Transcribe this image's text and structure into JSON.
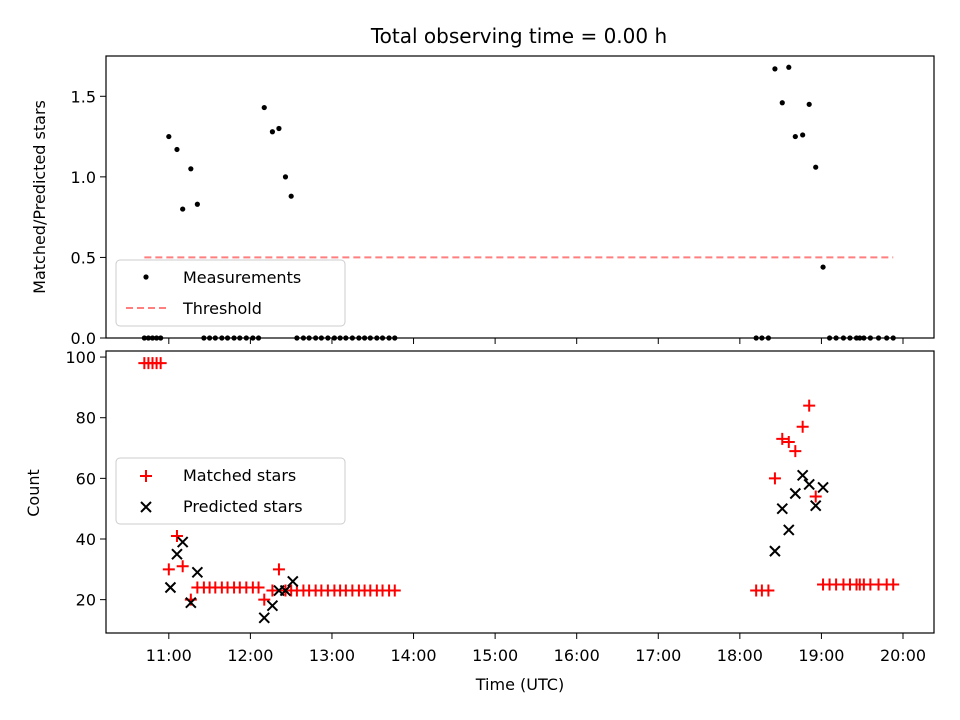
{
  "chart_data": [
    {
      "type": "scatter",
      "title": "Total observing time = 0.00 h",
      "ylabel": "Matched/Predicted stars",
      "ylim": [
        0,
        1.75
      ],
      "yticks": [
        "0.0",
        "0.5",
        "1.0",
        "1.5"
      ],
      "ytick_values": [
        0,
        0.5,
        1.0,
        1.5
      ],
      "xlim": [
        10.23,
        20.38
      ],
      "legend_position": "lower-left",
      "colors": {
        "measurements": "#000000",
        "threshold": "#ff7f7f"
      },
      "series": [
        {
          "name": "Measurements",
          "marker": "dot",
          "x": [
            10.7,
            10.75,
            10.8,
            10.85,
            10.9,
            11.0,
            11.1,
            11.17,
            11.27,
            11.35,
            11.43,
            11.5,
            11.57,
            11.65,
            11.72,
            11.8,
            11.87,
            11.95,
            12.03,
            12.1,
            12.17,
            12.27,
            12.35,
            12.43,
            12.5,
            12.57,
            12.65,
            12.72,
            12.8,
            12.87,
            12.95,
            13.03,
            13.1,
            13.17,
            13.25,
            13.33,
            13.4,
            13.47,
            13.55,
            13.62,
            13.7,
            13.77,
            18.2,
            18.27,
            18.35,
            18.43,
            18.52,
            18.6,
            18.68,
            18.77,
            18.85,
            18.93,
            19.02,
            19.1,
            19.18,
            19.27,
            19.35,
            19.43,
            19.47,
            19.52,
            19.6,
            19.7,
            19.8,
            19.88
          ],
          "y": [
            0,
            0,
            0,
            0,
            0,
            1.25,
            1.17,
            0.8,
            1.05,
            0.83,
            0,
            0,
            0,
            0,
            0,
            0,
            0,
            0,
            0,
            0,
            1.43,
            1.28,
            1.3,
            1.0,
            0.88,
            0,
            0,
            0,
            0,
            0,
            0,
            0,
            0,
            0,
            0,
            0,
            0,
            0,
            0,
            0,
            0,
            0,
            0,
            0,
            0,
            1.67,
            1.46,
            1.68,
            1.25,
            1.26,
            1.45,
            1.06,
            0.44,
            0,
            0,
            0,
            0,
            0,
            0,
            0,
            0,
            0,
            0,
            0
          ]
        },
        {
          "name": "Threshold",
          "line": "dashed",
          "x": [
            10.7,
            19.88
          ],
          "y": [
            0.5,
            0.5
          ]
        }
      ]
    },
    {
      "type": "scatter",
      "ylabel": "Count",
      "xlabel": "Time (UTC)",
      "ylim": [
        9,
        102
      ],
      "yticks": [
        "20",
        "40",
        "60",
        "80",
        "100"
      ],
      "ytick_values": [
        20,
        40,
        60,
        80,
        100
      ],
      "xlim": [
        10.23,
        20.38
      ],
      "xticks": [
        "11:00",
        "12:00",
        "13:00",
        "14:00",
        "15:00",
        "16:00",
        "17:00",
        "18:00",
        "19:00",
        "20:00"
      ],
      "xtick_values": [
        11,
        12,
        13,
        14,
        15,
        16,
        17,
        18,
        19,
        20
      ],
      "legend_position": "center-left",
      "colors": {
        "matched": "#ff0000",
        "predicted": "#000000"
      },
      "series": [
        {
          "name": "Matched stars",
          "marker": "plus",
          "x": [
            10.7,
            10.75,
            10.8,
            10.85,
            10.9,
            11.0,
            11.1,
            11.17,
            11.27,
            11.35,
            11.43,
            11.5,
            11.57,
            11.65,
            11.72,
            11.8,
            11.87,
            11.95,
            12.03,
            12.1,
            12.17,
            12.27,
            12.35,
            12.43,
            12.5,
            12.57,
            12.65,
            12.72,
            12.8,
            12.87,
            12.95,
            13.03,
            13.1,
            13.17,
            13.25,
            13.33,
            13.4,
            13.47,
            13.55,
            13.62,
            13.7,
            13.77,
            18.2,
            18.27,
            18.35,
            18.43,
            18.52,
            18.6,
            18.68,
            18.77,
            18.85,
            18.93,
            19.02,
            19.1,
            19.18,
            19.27,
            19.35,
            19.43,
            19.47,
            19.52,
            19.6,
            19.7,
            19.8,
            19.88
          ],
          "y": [
            98,
            98,
            98,
            98,
            98,
            30,
            41,
            31,
            20,
            24,
            24,
            24,
            24,
            24,
            24,
            24,
            24,
            24,
            24,
            24,
            20,
            23,
            30,
            23,
            23,
            23,
            23,
            23,
            23,
            23,
            23,
            23,
            23,
            23,
            23,
            23,
            23,
            23,
            23,
            23,
            23,
            23,
            23,
            23,
            23,
            60,
            73,
            72,
            69,
            77,
            84,
            54,
            25,
            25,
            25,
            25,
            25,
            25,
            25,
            25,
            25,
            25,
            25,
            25
          ]
        },
        {
          "name": "Predicted stars",
          "marker": "cross",
          "x": [
            11.02,
            11.1,
            11.17,
            11.27,
            11.35,
            12.17,
            12.27,
            12.35,
            12.43,
            12.52,
            18.43,
            18.52,
            18.6,
            18.68,
            18.77,
            18.85,
            18.93,
            19.02
          ],
          "y": [
            24,
            35,
            39,
            19,
            29,
            14,
            18,
            23,
            23,
            26,
            36,
            50,
            43,
            55,
            61,
            58,
            51,
            57
          ]
        }
      ]
    }
  ]
}
